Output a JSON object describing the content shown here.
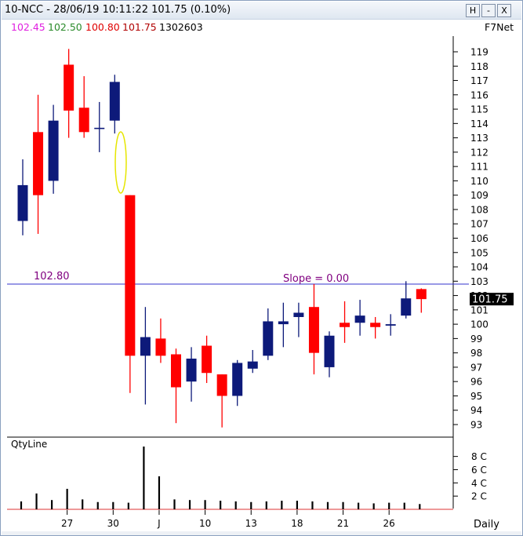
{
  "window": {
    "title": "10-NCC - 28/06/19 10:11:22 101.75 (0.10%)",
    "buttons": [
      "H",
      "-",
      "X"
    ]
  },
  "infobar": {
    "open": "102.45",
    "high": "102.50",
    "low": "100.80",
    "close": "101.75",
    "volume": "1302603",
    "brand": "F7Net"
  },
  "colors": {
    "up": "#0d1a7a",
    "down": "#ff0000",
    "hline": "#3333cc",
    "annotation": "#800080",
    "ellipse": "#e6e600"
  },
  "chart_data": [
    {
      "type": "candlestick",
      "ylim": [
        92.5,
        119.6
      ],
      "yticks": [
        93,
        94,
        95,
        96,
        97,
        98,
        99,
        100,
        101,
        102,
        103,
        104,
        105,
        106,
        107,
        108,
        109,
        110,
        111,
        112,
        113,
        114,
        115,
        116,
        117,
        118,
        119
      ],
      "x_ticks": [
        {
          "label": "27",
          "i": 3
        },
        {
          "label": "30",
          "i": 6
        },
        {
          "label": "J",
          "i": 9
        },
        {
          "label": "10",
          "i": 12
        },
        {
          "label": "13",
          "i": 15
        },
        {
          "label": "18",
          "i": 18
        },
        {
          "label": "21",
          "i": 21
        },
        {
          "label": "26",
          "i": 24
        }
      ],
      "last_price_label": "101.75",
      "horizontal_line": {
        "value": 102.8,
        "label": "102.80",
        "slope_label": "Slope = 0.00"
      },
      "candles": [
        {
          "o": 107.2,
          "h": 111.5,
          "l": 106.2,
          "c": 109.7
        },
        {
          "o": 113.4,
          "h": 116.0,
          "l": 106.3,
          "c": 109.0
        },
        {
          "o": 110.0,
          "h": 115.3,
          "l": 109.1,
          "c": 114.2
        },
        {
          "o": 118.1,
          "h": 119.2,
          "l": 113.0,
          "c": 114.9
        },
        {
          "o": 115.1,
          "h": 117.3,
          "l": 113.0,
          "c": 113.4
        },
        {
          "o": 113.7,
          "h": 115.5,
          "l": 112.0,
          "c": 113.7
        },
        {
          "o": 114.2,
          "h": 117.4,
          "l": 113.3,
          "c": 116.9
        },
        {
          "o": 109.0,
          "h": 109.0,
          "l": 95.2,
          "c": 97.8
        },
        {
          "o": 97.8,
          "h": 101.2,
          "l": 94.4,
          "c": 99.1
        },
        {
          "o": 99.0,
          "h": 100.4,
          "l": 97.3,
          "c": 97.8
        },
        {
          "o": 97.9,
          "h": 98.3,
          "l": 93.1,
          "c": 95.6
        },
        {
          "o": 96.0,
          "h": 98.4,
          "l": 94.6,
          "c": 97.6
        },
        {
          "o": 98.5,
          "h": 99.2,
          "l": 95.9,
          "c": 96.6
        },
        {
          "o": 96.5,
          "h": 96.5,
          "l": 92.8,
          "c": 95.0
        },
        {
          "o": 95.0,
          "h": 97.5,
          "l": 94.3,
          "c": 97.3
        },
        {
          "o": 96.9,
          "h": 98.2,
          "l": 96.6,
          "c": 97.4
        },
        {
          "o": 97.8,
          "h": 101.1,
          "l": 97.5,
          "c": 100.2
        },
        {
          "o": 100.0,
          "h": 101.5,
          "l": 98.4,
          "c": 100.2
        },
        {
          "o": 100.5,
          "h": 101.5,
          "l": 99.1,
          "c": 100.8
        },
        {
          "o": 101.2,
          "h": 102.8,
          "l": 96.5,
          "c": 98.0
        },
        {
          "o": 97.0,
          "h": 99.5,
          "l": 96.3,
          "c": 99.2
        },
        {
          "o": 100.1,
          "h": 101.6,
          "l": 98.7,
          "c": 99.8
        },
        {
          "o": 100.1,
          "h": 101.7,
          "l": 99.2,
          "c": 100.6
        },
        {
          "o": 100.1,
          "h": 100.5,
          "l": 99.0,
          "c": 99.8
        },
        {
          "o": 99.9,
          "h": 100.7,
          "l": 99.2,
          "c": 100.0
        },
        {
          "o": 100.6,
          "h": 103.0,
          "l": 100.4,
          "c": 101.8
        },
        {
          "o": 102.45,
          "h": 102.5,
          "l": 100.8,
          "c": 101.75
        }
      ]
    },
    {
      "type": "bar",
      "title": "QtyLine",
      "ylim": [
        0,
        9.5
      ],
      "yticks": [
        {
          "v": 2,
          "label": "2 C"
        },
        {
          "v": 4,
          "label": "4 C"
        },
        {
          "v": 6,
          "label": "6 C"
        },
        {
          "v": 8,
          "label": "8 C"
        }
      ],
      "values": [
        1.2,
        2.4,
        1.4,
        3.1,
        1.5,
        1.1,
        1.1,
        1.0,
        9.5,
        5.0,
        1.5,
        1.4,
        1.4,
        1.3,
        1.2,
        1.1,
        1.2,
        1.3,
        1.3,
        1.2,
        1.1,
        1.1,
        1.0,
        0.9,
        1.0,
        1.0,
        0.8
      ],
      "xaxis_label": "Daily"
    }
  ]
}
